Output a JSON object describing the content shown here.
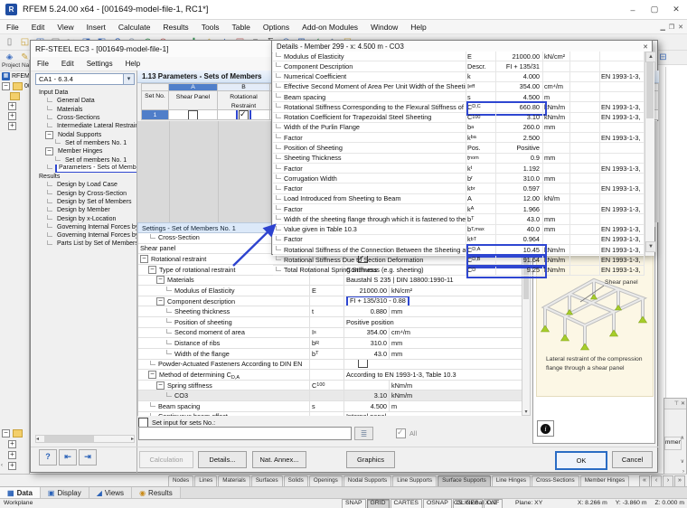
{
  "colors": {
    "accent": "#2e46d1",
    "selection": "#4f7ec9",
    "cream": "#fcf7e5",
    "support_green": "#a6cd2a"
  },
  "main_window": {
    "title": "RFEM 5.24.00 x64 - [001649-model-file-1, RC1*]",
    "menus": [
      "File",
      "Edit",
      "View",
      "Insert",
      "Calculate",
      "Results",
      "Tools",
      "Table",
      "Options",
      "Add-on Modules",
      "Window",
      "Help"
    ],
    "toolbar_icons": [
      {
        "n": "new-file",
        "g": "▯",
        "c": "#7b7b7b"
      },
      {
        "n": "open-file",
        "g": "◱",
        "c": "#caa23a"
      },
      {
        "n": "save",
        "g": "◫",
        "c": "#3f6fc0"
      },
      {
        "n": "print",
        "g": "▤",
        "c": "#7b7b7b"
      },
      {
        "n": "cut",
        "g": "✂",
        "c": "#888888"
      },
      {
        "n": "copy",
        "g": "◨",
        "c": "#3f6fc0"
      },
      {
        "n": "paste",
        "g": "◧",
        "c": "#3f6fc0"
      },
      {
        "n": "undo",
        "g": "↶",
        "c": "#2f62b8"
      },
      {
        "n": "redo",
        "g": "↷",
        "c": "#9aa7bd"
      },
      {
        "n": "zoom-in",
        "g": "⊕",
        "c": "#2f8f4f"
      },
      {
        "n": "zoom-out",
        "g": "⊖",
        "c": "#b85050"
      },
      {
        "n": "move",
        "g": "▭",
        "c": "#2f62b8"
      },
      {
        "n": "add",
        "g": "✚",
        "c": "#2f8f4f"
      },
      {
        "n": "node",
        "g": "◇",
        "c": "#caa23a"
      },
      {
        "n": "member",
        "g": "△",
        "c": "#2f62b8"
      },
      {
        "n": "surface",
        "g": "▣",
        "c": "#b85050"
      },
      {
        "n": "list",
        "g": "≡",
        "c": "#555555"
      },
      {
        "n": "sum",
        "g": "∑",
        "c": "#555555"
      },
      {
        "n": "render",
        "g": "◎",
        "c": "#2f62b8"
      },
      {
        "n": "grid",
        "g": "⊞",
        "c": "#2f62b8"
      },
      {
        "n": "check",
        "g": "✓",
        "c": "#2f8f4f"
      },
      {
        "n": "solid",
        "g": "◆",
        "c": "#7b8fb0"
      },
      {
        "n": "load",
        "g": "▽",
        "c": "#caa23a"
      },
      {
        "n": "results",
        "g": "●",
        "c": "#b85050"
      }
    ],
    "toolbar2_icons": [
      {
        "n": "select",
        "g": "◈",
        "c": "#3f6fc0"
      },
      {
        "n": "edit",
        "g": "✎",
        "c": "#caa23a"
      },
      {
        "n": "wrench",
        "g": "◌",
        "c": "#888888"
      },
      {
        "n": "panel",
        "g": "⊟",
        "c": "#3f6fc0"
      }
    ],
    "navigator": {
      "header": "Project Na",
      "root": "RFEM",
      "node": "00"
    },
    "table_tabs": [
      "Nodes",
      "Lines",
      "Materials",
      "Surfaces",
      "Solids",
      "Openings",
      "Nodal Supports",
      "Line Supports",
      "Surface Supports",
      "Line Hinges",
      "Cross-Sections",
      "Member Hinges"
    ],
    "active_table_tab": "Surface Supports",
    "nav_tabs": [
      {
        "label": "Data",
        "g": "▦",
        "c": "#2a62b8"
      },
      {
        "label": "Display",
        "g": "▣",
        "c": "#2a62b8"
      },
      {
        "label": "Views",
        "g": "◢",
        "c": "#2a62b8"
      },
      {
        "label": "Results",
        "g": "◉",
        "c": "#c98a18"
      }
    ],
    "active_nav_tab": "Data",
    "statusbar": {
      "left": "Workplane",
      "buttons": [
        "SNAP",
        "GRID",
        "CARTES",
        "OSNAP",
        "GLINES",
        "DXF"
      ],
      "pressed": "GRID",
      "cs": "CS: Global XYZ",
      "plane": "Plane: XY",
      "coord_x": "X: 8.266 m",
      "coord_y": "Y: -3.860 m",
      "coord_z": "Z: 0.000 m"
    },
    "comment_panel_label": "mment"
  },
  "rfsteel": {
    "title": "RF-STEEL EC3 - [001649-model-file-1]",
    "menus": [
      "File",
      "Edit",
      "Settings",
      "Help"
    ],
    "case_selector": "CA1 - 6.3.4",
    "tree": [
      {
        "label": "Input Data",
        "lvl": 0
      },
      {
        "label": "General Data",
        "lvl": 1
      },
      {
        "label": "Materials",
        "lvl": 1
      },
      {
        "label": "Cross-Sections",
        "lvl": 1
      },
      {
        "label": "Intermediate Lateral Restraints",
        "lvl": 1
      },
      {
        "label": "Nodal Supports",
        "lvl": 1,
        "exp": true
      },
      {
        "label": "Set of members No. 1",
        "lvl": 2
      },
      {
        "label": "Member Hinges",
        "lvl": 1,
        "exp": true
      },
      {
        "label": "Set of members No. 1",
        "lvl": 2
      },
      {
        "label": "Parameters - Sets of Members",
        "lvl": 1,
        "selected": true
      },
      {
        "label": "Results",
        "lvl": 0
      },
      {
        "label": "Design by Load Case",
        "lvl": 1
      },
      {
        "label": "Design by Cross-Section",
        "lvl": 1
      },
      {
        "label": "Design by Set of Members",
        "lvl": 1
      },
      {
        "label": "Design by Member",
        "lvl": 1
      },
      {
        "label": "Design by x-Location",
        "lvl": 1
      },
      {
        "label": "Governing Internal Forces by M",
        "lvl": 1
      },
      {
        "label": "Governing Internal Forces by S",
        "lvl": 1
      },
      {
        "label": "Parts List by Set of Members",
        "lvl": 1
      }
    ],
    "params": {
      "header": "1.13 Parameters - Sets of Members",
      "col_letters": [
        "A",
        "B"
      ],
      "col_set": "Set No.",
      "col_a": "Shear Panel",
      "col_b": "Rotational Restraint",
      "row_no": "1",
      "shear_panel_checked": false,
      "rotational_restraint_checked": true
    },
    "settings": {
      "header": "Settings - Set of Members No. 1",
      "set_input_label": "Set input for sets No.:",
      "all_label": "All",
      "rows": [
        {
          "lvl": 1,
          "label": "Cross-Section"
        },
        {
          "lvl": 0,
          "label": "Shear panel"
        },
        {
          "lvl": 0,
          "exp": true,
          "label": "Rotational restraint",
          "check": "on"
        },
        {
          "lvl": 1,
          "exp": true,
          "label": "Type of rotational restraint",
          "val": "Continuous (e.g. sheeting)"
        },
        {
          "lvl": 2,
          "exp": true,
          "label": "Materials",
          "val": "Baustahl S 235 | DIN 18800:1990-11"
        },
        {
          "lvl": 3,
          "label": "Modulus of Elasticity",
          "sym": "E",
          "val": "21000.00",
          "unit": "kN/cm²"
        },
        {
          "lvl": 2,
          "exp": true,
          "label": "Component description",
          "val": "FI + 135/310 - 0.88",
          "hl": true
        },
        {
          "lvl": 3,
          "label": "Sheeting thickness",
          "sym": "t",
          "val": "0.880",
          "unit": "mm"
        },
        {
          "lvl": 3,
          "label": "Position of sheeting",
          "val": "Positive position"
        },
        {
          "lvl": 3,
          "label": "Second moment of area",
          "sym": "I_s",
          "val": "354.00",
          "unit": "cm⁴/m"
        },
        {
          "lvl": 3,
          "label": "Distance of ribs",
          "sym": "b_R",
          "val": "310.0",
          "unit": "mm"
        },
        {
          "lvl": 3,
          "label": "Width of the flange",
          "sym": "b_T",
          "val": "43.0",
          "unit": "mm"
        },
        {
          "lvl": 1,
          "label": "Powder-Actuated Fasteners According to DIN EN",
          "check": "off"
        },
        {
          "lvl": 1,
          "exp": true,
          "label": "Method of determining C_D,A",
          "val": "According to EN 1993-1-3, Table 10.3"
        },
        {
          "lvl": 2,
          "exp": true,
          "label": "Spring stiffness",
          "sym": "C_100",
          "val": "",
          "unit": "kNm/m"
        },
        {
          "lvl": 3,
          "label": "CO3",
          "val": "3.10",
          "unit": "kNm/m",
          "gray": true
        },
        {
          "lvl": 1,
          "label": "Beam spacing",
          "sym": "s",
          "val": "4.500",
          "unit": "m"
        },
        {
          "lvl": 1,
          "label": "Continuous beam effect",
          "val": "Internal panel"
        },
        {
          "lvl": 1,
          "label": "Cross-Section Deformation",
          "sym": "C_D,B",
          "check": "on",
          "hl": true
        }
      ]
    },
    "graphics": {
      "pointer_label": "Shear panel",
      "caption": "Lateral restraint of the compression flange through a shear panel"
    },
    "footer_buttons": {
      "calculation": "Calculation",
      "details": "Details...",
      "nat_annex": "Nat. Annex...",
      "graphics": "Graphics",
      "ok": "OK",
      "cancel": "Cancel"
    }
  },
  "details": {
    "title": "Details - Member 299 - x: 4.500 m - CO3",
    "rows": [
      {
        "d": "Modulus of Elasticity",
        "s": "E",
        "v": "21000.00",
        "u": "kN/cm²",
        "c": ""
      },
      {
        "d": "Component Description",
        "s": "Descr.",
        "v": "FI + 135/31",
        "u": "",
        "c": ""
      },
      {
        "d": "Numerical Coefficient",
        "s": "k",
        "v": "4.000",
        "u": "",
        "c": "EN 1993-1-3,"
      },
      {
        "d": "Effective Second Moment of Area Per Unit Width of the Sheeting",
        "s": "I_eff",
        "v": "354.00",
        "u": "cm⁴/m",
        "c": ""
      },
      {
        "d": "Beam spacing",
        "s": "s",
        "v": "4.500",
        "u": "m",
        "c": ""
      },
      {
        "d": "Rotational Stiffness Corresponding to the Flexural Stiffness of the",
        "s": "C_D,C",
        "v": "660.80",
        "u": "kNm/m",
        "c": "EN 1993-1-3,",
        "hl": true
      },
      {
        "d": "Rotation Coefficient for Trapezoidal Steel Sheeting",
        "s": "C_100",
        "v": "3.10",
        "u": "kNm/m",
        "c": "EN 1993-1-3,"
      },
      {
        "d": "Width of the Purlin Flange",
        "s": "b_a",
        "v": "260.0",
        "u": "mm",
        "c": ""
      },
      {
        "d": "Factor",
        "s": "k_ba",
        "v": "2.500",
        "u": "",
        "c": "EN 1993-1-3,"
      },
      {
        "d": "Position of Sheeting",
        "s": "Pos.",
        "v": "Positive",
        "u": "",
        "c": ""
      },
      {
        "d": "Sheeting Thickness",
        "s": "t_nom",
        "v": "0.9",
        "u": "mm",
        "c": ""
      },
      {
        "d": "Factor",
        "s": "k_t",
        "v": "1.192",
        "u": "",
        "c": "EN 1993-1-3,"
      },
      {
        "d": "Corrugation Width",
        "s": "b_r",
        "v": "310.0",
        "u": "mm",
        "c": ""
      },
      {
        "d": "Factor",
        "s": "k_br",
        "v": "0.597",
        "u": "",
        "c": "EN 1993-1-3,"
      },
      {
        "d": "Load Introduced from Sheeting to Beam",
        "s": "A",
        "v": "12.00",
        "u": "kN/m",
        "c": ""
      },
      {
        "d": "Factor",
        "s": "k_A",
        "v": "1.966",
        "u": "",
        "c": "EN 1993-1-3,"
      },
      {
        "d": "Width of the sheeting flange through which it is fastened to the p",
        "s": "b_T",
        "v": "43.0",
        "u": "mm",
        "c": ""
      },
      {
        "d": "Value given in Table 10.3",
        "s": "b_T,max",
        "v": "40.0",
        "u": "mm",
        "c": "EN 1993-1-3,"
      },
      {
        "d": "Factor",
        "s": "k_bT",
        "v": "0.964",
        "u": "",
        "c": "EN 1993-1-3,"
      },
      {
        "d": "Rotational Stiffness of the Connection Between the Sheeting and",
        "s": "C_D,A",
        "v": "10.45",
        "u": "kNm/m",
        "c": "EN 1993-1-3,",
        "hl": true
      },
      {
        "d": "Rotational Stiffness Due to Section Deformation",
        "s": "C_D,B",
        "v": "91.64",
        "u": "kNm/m",
        "c": "EN 1993-1-3,",
        "hl": true
      },
      {
        "d": "Total Rotational Spring Stiffness",
        "s": "C_D",
        "v": "9.25",
        "u": "kNm/m",
        "c": "EN 1993-1-3,",
        "hl": true
      }
    ]
  }
}
